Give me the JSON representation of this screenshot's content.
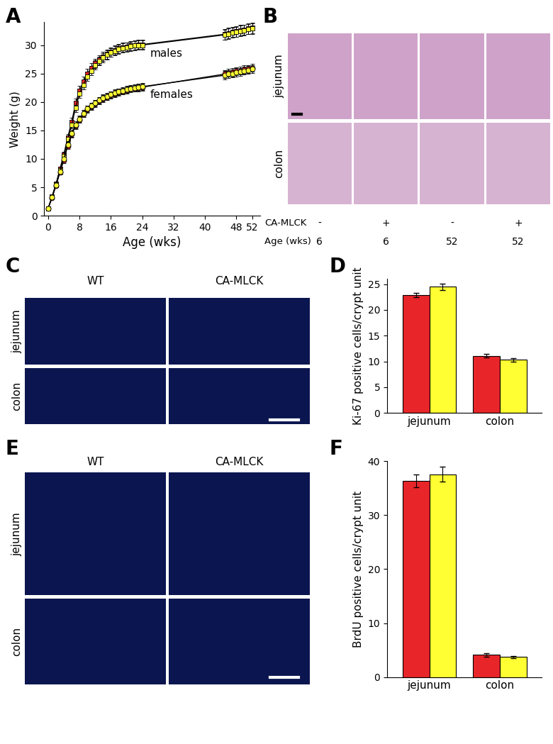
{
  "chart_data": [
    {
      "panel": "A",
      "type": "line",
      "x": [
        0,
        1,
        2,
        3,
        4,
        5,
        6,
        7,
        8,
        9,
        10,
        11,
        12,
        13,
        14,
        15,
        16,
        17,
        18,
        19,
        20,
        21,
        22,
        23,
        24,
        45,
        46,
        47,
        48,
        49,
        50,
        51,
        52
      ],
      "xlim": [
        -1,
        54
      ],
      "xticks": [
        0,
        8,
        16,
        24,
        32,
        40,
        48,
        52
      ],
      "ylim": [
        0,
        34
      ],
      "yticks": [
        0,
        5,
        10,
        15,
        20,
        25,
        30
      ],
      "x_label": "Age (wks)",
      "y_label": "Weight (g)",
      "series": [
        {
          "color": "#e8262a",
          "marker": "square",
          "values": [
            1.3,
            3.4,
            5.6,
            8.2,
            10.8,
            13.8,
            16.5,
            19.8,
            22.0,
            23.6,
            25.0,
            26.0,
            26.8,
            27.4,
            28.0,
            28.4,
            28.8,
            29.1,
            29.4,
            29.6,
            29.7,
            29.9,
            30.0,
            30.1,
            30.1,
            31.9,
            32.1,
            32.3,
            32.4,
            32.6,
            32.7,
            32.9,
            33.0
          ],
          "errors": [
            0.1,
            0.2,
            0.3,
            0.4,
            0.5,
            0.6,
            0.7,
            0.8,
            0.8,
            0.8,
            0.8,
            0.8,
            0.8,
            0.8,
            0.8,
            0.8,
            0.8,
            0.8,
            0.8,
            0.8,
            0.8,
            0.8,
            0.8,
            0.8,
            0.8,
            0.9,
            0.9,
            0.9,
            0.9,
            0.9,
            0.9,
            0.9,
            0.9
          ]
        },
        {
          "color": "#ffff33",
          "marker": "square",
          "values": [
            1.3,
            3.3,
            5.5,
            8.0,
            10.5,
            13.5,
            16.0,
            19.0,
            21.5,
            23.0,
            24.5,
            25.5,
            26.5,
            27.2,
            27.8,
            28.3,
            28.7,
            29.0,
            29.3,
            29.5,
            29.6,
            29.8,
            29.9,
            30.0,
            30.0,
            31.8,
            32.0,
            32.2,
            32.3,
            32.5,
            32.6,
            32.8,
            32.9
          ],
          "errors": [
            0.1,
            0.2,
            0.3,
            0.4,
            0.5,
            0.6,
            0.7,
            0.8,
            0.8,
            0.8,
            0.8,
            0.8,
            0.8,
            0.8,
            0.8,
            0.8,
            0.8,
            0.8,
            0.8,
            0.8,
            0.8,
            0.8,
            0.8,
            0.8,
            0.8,
            0.9,
            0.9,
            0.9,
            0.9,
            0.9,
            0.9,
            0.9,
            0.9
          ]
        },
        {
          "color": "#e8262a",
          "marker": "circle",
          "values": [
            1.3,
            3.2,
            5.3,
            7.6,
            9.8,
            12.3,
            14.3,
            15.8,
            16.9,
            17.9,
            18.7,
            19.2,
            19.7,
            20.2,
            20.6,
            20.9,
            21.2,
            21.5,
            21.7,
            21.9,
            22.1,
            22.3,
            22.4,
            22.5,
            22.6,
            24.9,
            25.1,
            25.2,
            25.4,
            25.5,
            25.7,
            25.8,
            26.0
          ],
          "errors": [
            0.1,
            0.2,
            0.3,
            0.4,
            0.5,
            0.5,
            0.6,
            0.6,
            0.6,
            0.6,
            0.6,
            0.6,
            0.6,
            0.6,
            0.6,
            0.6,
            0.6,
            0.6,
            0.6,
            0.6,
            0.6,
            0.6,
            0.6,
            0.6,
            0.6,
            0.7,
            0.7,
            0.7,
            0.7,
            0.7,
            0.7,
            0.7,
            0.7
          ]
        },
        {
          "color": "#ffff33",
          "marker": "circle",
          "values": [
            1.3,
            3.3,
            5.4,
            7.8,
            10.0,
            12.5,
            14.5,
            16.0,
            17.0,
            18.0,
            18.8,
            19.3,
            19.8,
            20.3,
            20.7,
            21.0,
            21.3,
            21.6,
            21.8,
            22.0,
            22.2,
            22.4,
            22.5,
            22.6,
            22.7,
            24.7,
            24.9,
            25.0,
            25.2,
            25.3,
            25.5,
            25.6,
            25.8
          ],
          "errors": [
            0.1,
            0.2,
            0.3,
            0.4,
            0.5,
            0.5,
            0.6,
            0.6,
            0.6,
            0.6,
            0.6,
            0.6,
            0.6,
            0.6,
            0.6,
            0.6,
            0.6,
            0.6,
            0.6,
            0.6,
            0.6,
            0.6,
            0.6,
            0.6,
            0.6,
            0.7,
            0.7,
            0.7,
            0.7,
            0.7,
            0.7,
            0.7,
            0.7
          ]
        }
      ],
      "annotations": [
        {
          "text": "males",
          "x": 26,
          "y": 29.5
        },
        {
          "text": "females",
          "x": 26,
          "y": 22.2
        }
      ]
    },
    {
      "panel": "D",
      "type": "bar",
      "categories": [
        "jejunum",
        "colon"
      ],
      "y_label": "Ki-67 positive cells/crypt unit",
      "ylim": [
        0,
        26
      ],
      "yticks": [
        0,
        5,
        10,
        15,
        20,
        25
      ],
      "series": [
        {
          "color": "#e8262a",
          "values": [
            22.9,
            11.1
          ],
          "errors": [
            0.4,
            0.3
          ]
        },
        {
          "color": "#ffff33",
          "values": [
            24.5,
            10.3
          ],
          "errors": [
            0.6,
            0.3
          ]
        }
      ]
    },
    {
      "panel": "F",
      "type": "bar",
      "categories": [
        "jejunum",
        "colon"
      ],
      "y_label": "BrdU positive cells/crypt unit",
      "ylim": [
        0,
        40
      ],
      "yticks": [
        0,
        10,
        20,
        30,
        40
      ],
      "series": [
        {
          "color": "#e8262a",
          "values": [
            36.4,
            4.1
          ],
          "errors": [
            1.2,
            0.3
          ]
        },
        {
          "color": "#ffff33",
          "values": [
            37.6,
            3.7
          ],
          "errors": [
            1.4,
            0.2
          ]
        }
      ]
    }
  ],
  "image_panels": [
    {
      "panel": "B",
      "rows": [
        "jejunum",
        "colon"
      ],
      "footer": [
        {
          "label": "CA-MLCK",
          "values": [
            "-",
            "+",
            "-",
            "+"
          ]
        },
        {
          "label": "Age (wks)",
          "values": [
            "6",
            "6",
            "52",
            "52"
          ]
        }
      ]
    },
    {
      "panel": "C",
      "columns": [
        "WT",
        "CA-MLCK"
      ],
      "rows": [
        "jejunum",
        "colon"
      ]
    },
    {
      "panel": "E",
      "columns": [
        "WT",
        "CA-MLCK"
      ],
      "rows": [
        "jejunum",
        "colon"
      ]
    }
  ]
}
